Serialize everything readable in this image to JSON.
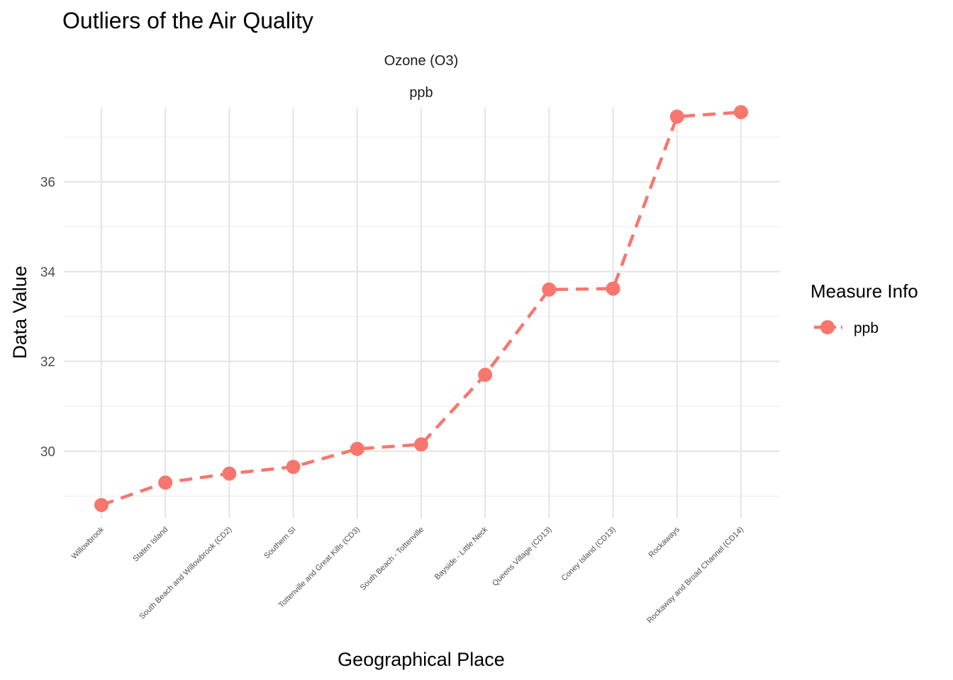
{
  "chart_data": {
    "type": "line",
    "title": "Outliers of the Air Quality",
    "facet_labels": [
      "Ozone (O3)",
      "ppb"
    ],
    "xlabel": "Geographical Place",
    "ylabel": "Data Value",
    "categories": [
      "Willowbrook",
      "Staten Island",
      "South Beach and Willowbrook (CD2)",
      "Southern SI",
      "Tottenville and Great Kills (CD3)",
      "South Beach - Tottenville",
      "Bayside - Little Neck",
      "Queens Village (CD13)",
      "Coney Island (CD13)",
      "Rockaways",
      "Rockaway and Broad Channel (CD14)"
    ],
    "series": [
      {
        "name": "ppb",
        "values": [
          28.8,
          29.3,
          29.5,
          29.65,
          30.05,
          30.15,
          31.7,
          33.6,
          33.62,
          37.45,
          37.55
        ],
        "color": "#F8766D",
        "line_style": "dashed"
      }
    ],
    "ylim": [
      28.5,
      37.65
    ],
    "yticks": [
      30,
      32,
      34,
      36
    ],
    "grid": true,
    "legend": {
      "title": "Measure Info",
      "position": "right"
    }
  }
}
